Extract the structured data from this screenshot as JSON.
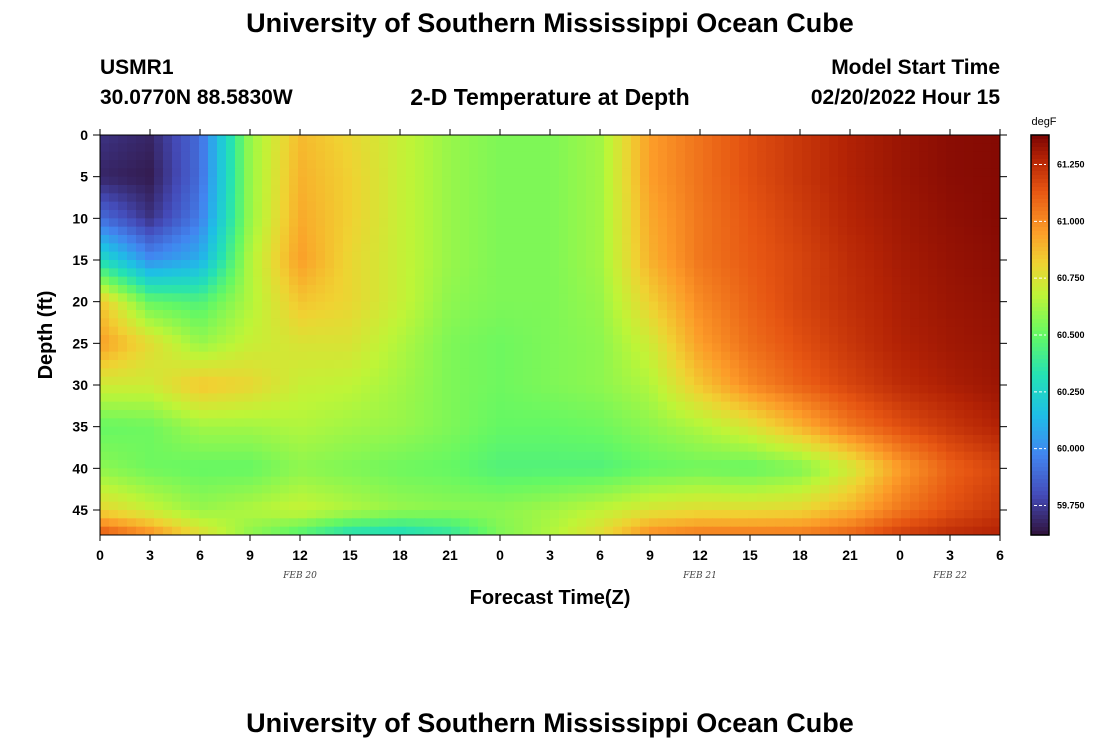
{
  "page": {
    "title": "University of Southern Mississippi Ocean Cube",
    "footer_title": "University of Southern Mississippi Ocean Cube",
    "station_id": "USMR1",
    "coordinates": "30.0770N  88.5830W",
    "plot_title": "2-D Temperature at Depth",
    "model_start_label": "Model Start Time",
    "model_start_value": "02/20/2022 Hour 15"
  },
  "chart_data": {
    "type": "heatmap",
    "title": "2-D Temperature at Depth",
    "xlabel": "Forecast Time(Z)",
    "ylabel": "Depth (ft)",
    "x_ticks": [
      "0",
      "3",
      "6",
      "9",
      "12",
      "15",
      "18",
      "21",
      "0",
      "3",
      "6",
      "9",
      "12",
      "15",
      "18",
      "21",
      "0",
      "3",
      "6"
    ],
    "x_date_labels": [
      {
        "label": "FEB 20",
        "tick_index": 4
      },
      {
        "label": "FEB 21",
        "tick_index": 12
      },
      {
        "label": "FEB 22",
        "tick_index": 17
      }
    ],
    "y_ticks": [
      0,
      5,
      10,
      15,
      20,
      25,
      30,
      35,
      40,
      45
    ],
    "xlim_hours": [
      0,
      54
    ],
    "ylim_ft": [
      0,
      48
    ],
    "colorbar": {
      "unit": "degF",
      "range": [
        59.62,
        61.38
      ],
      "ticks": [
        "59.750",
        "60.000",
        "60.250",
        "60.500",
        "60.750",
        "61.000",
        "61.250"
      ],
      "tick_values": [
        59.75,
        60.0,
        60.25,
        60.5,
        60.75,
        61.0,
        61.25
      ]
    },
    "grid_hours": [
      0,
      3,
      6,
      9,
      12,
      15,
      18,
      21,
      24,
      27,
      30,
      33,
      36,
      39,
      42,
      45,
      48,
      51,
      54
    ],
    "grid_depths_ft": [
      0,
      5,
      10,
      15,
      20,
      25,
      30,
      35,
      40,
      45,
      48
    ],
    "values": [
      [
        59.72,
        59.68,
        59.9,
        60.6,
        60.88,
        60.8,
        60.7,
        60.6,
        60.55,
        60.55,
        60.62,
        60.95,
        61.06,
        61.15,
        61.22,
        61.28,
        61.32,
        61.35,
        61.36
      ],
      [
        59.68,
        59.65,
        59.9,
        60.6,
        60.9,
        60.82,
        60.7,
        60.6,
        60.55,
        60.55,
        60.62,
        60.95,
        61.06,
        61.15,
        61.22,
        61.28,
        61.32,
        61.35,
        61.36
      ],
      [
        59.9,
        59.72,
        59.95,
        60.6,
        60.92,
        60.82,
        60.7,
        60.6,
        60.55,
        60.55,
        60.62,
        60.92,
        61.05,
        61.13,
        61.2,
        61.27,
        61.31,
        61.34,
        61.36
      ],
      [
        60.3,
        60.0,
        60.1,
        60.65,
        60.95,
        60.8,
        60.7,
        60.6,
        60.55,
        60.55,
        60.62,
        60.9,
        61.05,
        61.12,
        61.18,
        61.25,
        61.3,
        61.33,
        61.35
      ],
      [
        60.85,
        60.5,
        60.45,
        60.65,
        60.85,
        60.8,
        60.7,
        60.58,
        60.55,
        60.55,
        60.6,
        60.82,
        61.0,
        61.1,
        61.18,
        61.24,
        61.29,
        61.32,
        61.34
      ],
      [
        60.95,
        60.78,
        60.6,
        60.7,
        60.75,
        60.75,
        60.65,
        60.55,
        60.52,
        60.55,
        60.58,
        60.72,
        60.95,
        61.07,
        61.15,
        61.22,
        61.28,
        61.31,
        61.33
      ],
      [
        60.72,
        60.72,
        60.85,
        60.8,
        60.7,
        60.68,
        60.62,
        60.55,
        60.52,
        60.55,
        60.58,
        60.65,
        60.85,
        61.0,
        61.1,
        61.18,
        61.25,
        61.29,
        61.32
      ],
      [
        60.5,
        60.52,
        60.62,
        60.62,
        60.65,
        60.62,
        60.6,
        60.55,
        60.5,
        60.5,
        60.52,
        60.58,
        60.65,
        60.75,
        60.9,
        61.05,
        61.15,
        61.22,
        61.28
      ],
      [
        60.58,
        60.52,
        60.5,
        60.5,
        60.58,
        60.55,
        60.52,
        60.5,
        60.45,
        60.45,
        60.45,
        60.5,
        60.52,
        60.5,
        60.55,
        60.72,
        60.95,
        61.1,
        61.18
      ],
      [
        60.8,
        60.7,
        60.6,
        60.65,
        60.7,
        60.65,
        60.6,
        60.58,
        60.58,
        60.62,
        60.68,
        60.75,
        60.78,
        60.78,
        60.8,
        60.9,
        61.05,
        61.15,
        61.22
      ],
      [
        61.15,
        61.0,
        60.78,
        60.58,
        60.45,
        60.3,
        60.28,
        60.35,
        60.55,
        60.65,
        60.78,
        61.0,
        61.05,
        61.05,
        61.05,
        61.1,
        61.2,
        61.25,
        61.28
      ]
    ]
  }
}
